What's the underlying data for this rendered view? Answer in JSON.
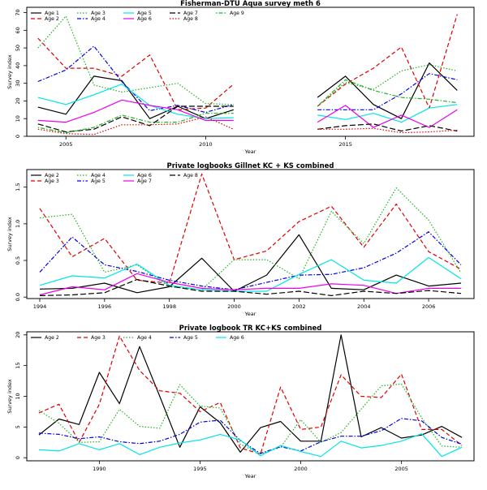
{
  "chart_data": [
    {
      "type": "line",
      "title": "Fisherman-DTU Aqua survey meth 6",
      "xlabel": "Year",
      "ylabel": "Survey index",
      "xlim": [
        2003.6,
        2019.6
      ],
      "ylim": [
        0,
        73
      ],
      "xticks": [
        2005,
        2010,
        2015
      ],
      "yticks": [
        0,
        10,
        20,
        30,
        40,
        50,
        60,
        70
      ],
      "legend_placement": "top-left",
      "x": [
        2004,
        2005,
        2006,
        2007,
        2008,
        2009,
        2010,
        2011,
        2012,
        2013,
        2014,
        2015,
        2016,
        2017,
        2018,
        2019
      ],
      "series": [
        {
          "name": "Age 1",
          "color": "#000000",
          "dash": "solid",
          "values": [
            16.5,
            12.5,
            34,
            31.5,
            10,
            17,
            10,
            15,
            null,
            null,
            22,
            34,
            18,
            10,
            41.5,
            26
          ]
        },
        {
          "name": "Age 2",
          "color": "#df0000",
          "dash": "dashed",
          "values": [
            55.5,
            38.5,
            38.5,
            34,
            46,
            15,
            16,
            29.5,
            null,
            null,
            17,
            29.5,
            38.5,
            50.5,
            16,
            69
          ]
        },
        {
          "name": "Age 3",
          "color": "#22b422",
          "dash": "dotted",
          "values": [
            50,
            68,
            29,
            25,
            27.5,
            30,
            18.5,
            18,
            null,
            null,
            17,
            30.5,
            26.5,
            37,
            40.5,
            37
          ]
        },
        {
          "name": "Age 4",
          "color": "#0000e6",
          "dash": "dashdot",
          "values": [
            31,
            37.5,
            51,
            31,
            14.5,
            17.5,
            13.5,
            18,
            null,
            null,
            15,
            15,
            15,
            24,
            35.5,
            32
          ]
        },
        {
          "name": "Age 5",
          "color": "#00e5e5",
          "dash": "solid",
          "values": [
            22,
            18,
            23.5,
            29.5,
            17.5,
            12.5,
            10,
            10.5,
            null,
            null,
            12,
            9.5,
            13,
            8,
            16,
            18
          ]
        },
        {
          "name": "Age 6",
          "color": "#ee00ee",
          "dash": "solid",
          "values": [
            9,
            8,
            13.5,
            20.5,
            17.5,
            15,
            9,
            9,
            null,
            null,
            8,
            17.5,
            5,
            12,
            5,
            15
          ]
        },
        {
          "name": "Age 7",
          "color": "#000000",
          "dash": "longdash",
          "values": [
            7,
            2.5,
            4,
            11,
            6,
            17,
            17,
            17,
            null,
            null,
            4,
            6,
            7,
            3,
            6,
            3
          ]
        },
        {
          "name": "Age 8",
          "color": "#df0000",
          "dash": "dotted",
          "values": [
            4,
            1.5,
            1,
            6.5,
            6.5,
            7,
            11,
            4,
            null,
            null,
            4,
            4,
            4.5,
            2,
            2.5,
            3.5
          ]
        },
        {
          "name": "Age 9",
          "color": "#22b422",
          "dash": "dotdash",
          "values": [
            5,
            2,
            5,
            12,
            8,
            8,
            13,
            13,
            null,
            null,
            17,
            32,
            26,
            22,
            21,
            19
          ]
        }
      ]
    },
    {
      "type": "line",
      "title": "Private logbooks Gillnet KC + KS combined",
      "xlabel": "Year",
      "ylabel": "Survey index",
      "xlim": [
        1993.6,
        2007.4
      ],
      "ylim": [
        -0.02,
        1.74
      ],
      "xticks": [
        1994,
        1996,
        1998,
        2000,
        2002,
        2004,
        2006
      ],
      "yticks": [
        0.0,
        0.5,
        1.0,
        1.5
      ],
      "ytick_labels": [
        "0.0",
        "0.5",
        "1.0",
        "1.5"
      ],
      "legend_placement": "top-left",
      "x": [
        1994,
        1995,
        1996,
        1997,
        1998,
        1999,
        2000,
        2001,
        2002,
        2003,
        2004,
        2005,
        2006,
        2007
      ],
      "series": [
        {
          "name": "Age 2",
          "color": "#000000",
          "dash": "solid",
          "values": [
            0.11,
            0.12,
            0.19,
            0.06,
            0.14,
            0.53,
            0.08,
            0.3,
            0.85,
            0.12,
            0.1,
            0.3,
            0.15,
            0.19
          ]
        },
        {
          "name": "Age 3",
          "color": "#df0000",
          "dash": "dashed",
          "values": [
            1.21,
            0.55,
            0.8,
            0.23,
            0.19,
            1.68,
            0.51,
            0.63,
            1.03,
            1.24,
            0.68,
            1.27,
            0.62,
            0.38
          ]
        },
        {
          "name": "Age 4",
          "color": "#22b422",
          "dash": "dotted",
          "values": [
            1.08,
            1.13,
            0.34,
            0.44,
            0.14,
            0.1,
            0.51,
            0.51,
            0.25,
            1.17,
            0.73,
            1.49,
            1.05,
            0.33
          ]
        },
        {
          "name": "Age 5",
          "color": "#0000e6",
          "dash": "dashdot",
          "values": [
            0.34,
            0.82,
            0.44,
            0.35,
            0.23,
            0.15,
            0.1,
            0.2,
            0.3,
            0.31,
            0.4,
            0.6,
            0.89,
            0.44
          ]
        },
        {
          "name": "Age 6",
          "color": "#00e5e5",
          "dash": "solid",
          "values": [
            0.16,
            0.29,
            0.26,
            0.45,
            0.16,
            0.1,
            0.08,
            0.08,
            0.31,
            0.51,
            0.23,
            0.19,
            0.54,
            0.25
          ]
        },
        {
          "name": "Age 7",
          "color": "#ee00ee",
          "dash": "solid",
          "values": [
            0.03,
            0.14,
            0.1,
            0.32,
            0.2,
            0.12,
            0.1,
            0.12,
            0.12,
            0.18,
            0.16,
            0.05,
            0.12,
            0.12
          ]
        },
        {
          "name": "Age 8",
          "color": "#000000",
          "dash": "longdash",
          "values": [
            0.02,
            0.03,
            0.06,
            0.24,
            0.15,
            0.08,
            0.08,
            0.04,
            0.08,
            0.02,
            0.08,
            0.05,
            0.09,
            0.05
          ]
        }
      ]
    },
    {
      "type": "line",
      "title": "Private logbook TR KC+KS combined",
      "xlabel": "Year",
      "ylabel": "Survey index",
      "xlim": [
        1986.4,
        2008.6
      ],
      "ylim": [
        -0.5,
        20.5
      ],
      "xticks": [
        1990,
        1995,
        2000,
        2005
      ],
      "yticks": [
        0,
        5,
        10,
        15,
        20
      ],
      "legend_placement": "top-left",
      "x": [
        1987,
        1988,
        1989,
        1990,
        1991,
        1992,
        1993,
        1994,
        1995,
        1996,
        1997,
        1998,
        1999,
        2000,
        2001,
        2002,
        2003,
        2004,
        2005,
        2006,
        2007,
        2008
      ],
      "series": [
        {
          "name": "Age 2",
          "color": "#000000",
          "dash": "solid",
          "values": [
            3.7,
            6.3,
            5.4,
            13.9,
            8.8,
            18.1,
            10,
            1.7,
            8.3,
            5.7,
            0.9,
            4.9,
            5.9,
            2.7,
            2.7,
            20,
            3.4,
            4.9,
            3.2,
            3.7,
            5.1,
            3.3
          ]
        },
        {
          "name": "Age 3",
          "color": "#df0000",
          "dash": "dashed",
          "values": [
            7.3,
            8.7,
            2.5,
            8.7,
            19.8,
            14.2,
            10.9,
            10.5,
            7.5,
            9,
            1.6,
            0.6,
            11.5,
            4.6,
            5,
            13.5,
            10,
            9.8,
            13.6,
            4.6,
            4.6,
            2
          ]
        },
        {
          "name": "Age 4",
          "color": "#22b422",
          "dash": "dotted",
          "values": [
            7.7,
            5.6,
            2.5,
            2.6,
            7.9,
            5.1,
            4.8,
            11.9,
            8.4,
            8.1,
            2.2,
            0.6,
            1.7,
            6.2,
            2.5,
            4.1,
            7.9,
            11.7,
            12,
            6.5,
            1.9,
            1.7
          ]
        },
        {
          "name": "Age 5",
          "color": "#0000e6",
          "dash": "dashdot",
          "values": [
            4,
            3.8,
            3.1,
            3.4,
            2.6,
            2.3,
            2.7,
            3.8,
            5.8,
            6.1,
            2.8,
            0.7,
            1.8,
            1.1,
            2.6,
            3.5,
            3.5,
            4.4,
            6.4,
            6,
            3.3,
            2.2
          ]
        },
        {
          "name": "Age 6",
          "color": "#00e5e5",
          "dash": "solid",
          "values": [
            1.3,
            1.1,
            2.3,
            1.3,
            2.3,
            0.5,
            1.7,
            2.4,
            2.9,
            3.8,
            2.9,
            0.3,
            2,
            1,
            0.2,
            2.7,
            1.6,
            2,
            2.7,
            3.9,
            0.2,
            1.7
          ]
        }
      ]
    }
  ]
}
